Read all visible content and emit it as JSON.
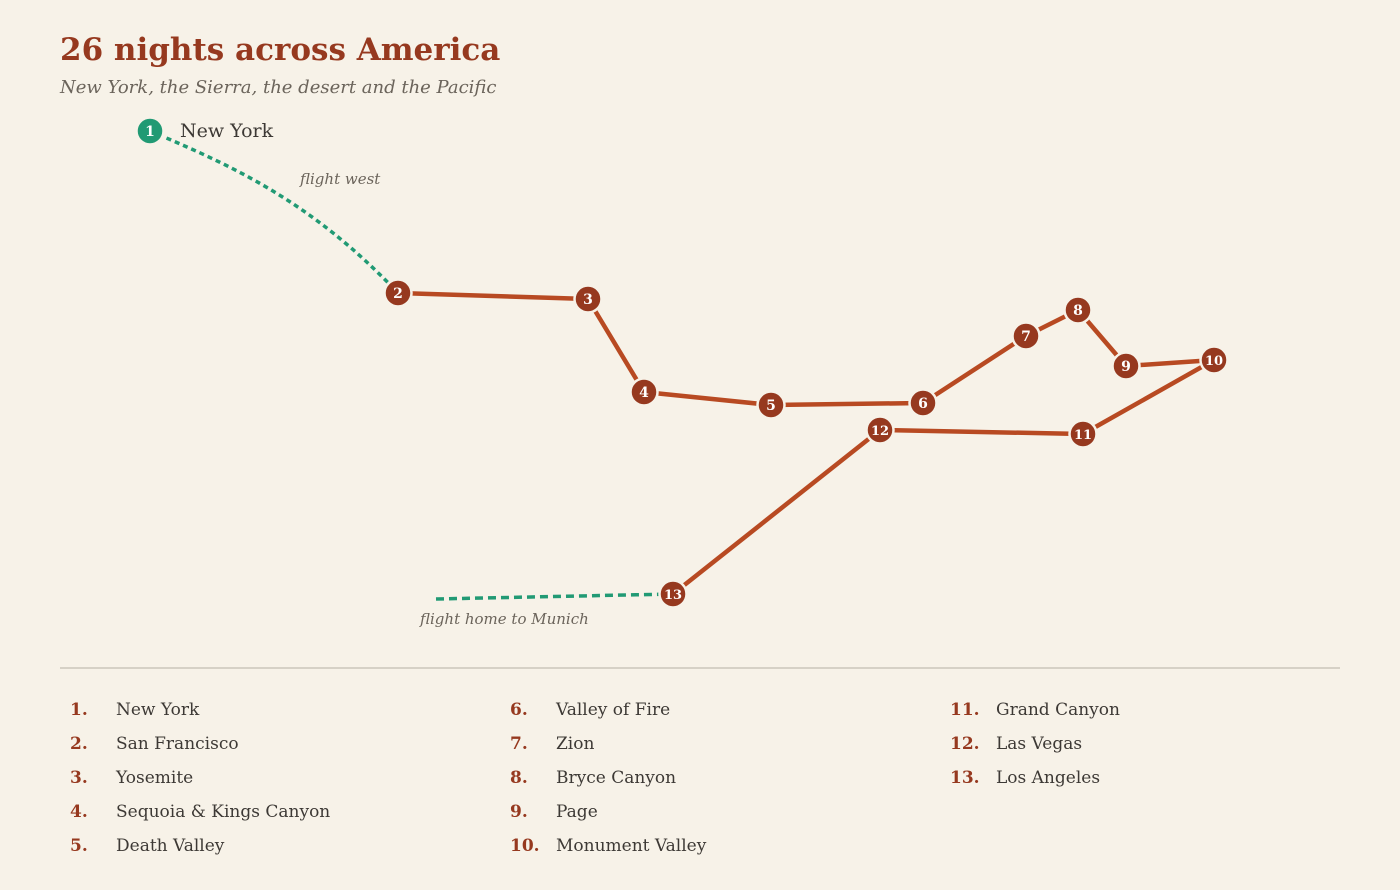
{
  "title": "26 nights across America",
  "subtitle": "New York, the Sierra, the desert and the Pacific",
  "colors": {
    "background": "#f7f2e8",
    "accent": "#96391f",
    "route_line": "#b84a22",
    "flight": "#219a74",
    "stop_fill": "#96391f",
    "divider": "#d6d1c6"
  },
  "start_label": "New York",
  "flight_labels": {
    "west": "flight west",
    "home": "flight home to Munich"
  },
  "stops": [
    {
      "num": "1",
      "name": "New York"
    },
    {
      "num": "2",
      "name": "San Francisco"
    },
    {
      "num": "3",
      "name": "Yosemite"
    },
    {
      "num": "4",
      "name": "Sequoia & Kings Canyon"
    },
    {
      "num": "5",
      "name": "Death Valley"
    },
    {
      "num": "6",
      "name": "Valley of Fire"
    },
    {
      "num": "7",
      "name": "Zion"
    },
    {
      "num": "8",
      "name": "Bryce Canyon"
    },
    {
      "num": "9",
      "name": "Page"
    },
    {
      "num": "10",
      "name": "Monument Valley"
    },
    {
      "num": "11",
      "name": "Grand Canyon"
    },
    {
      "num": "12",
      "name": "Las Vegas"
    },
    {
      "num": "13",
      "name": "Los Angeles"
    }
  ],
  "legend": {
    "col1": [
      {
        "num": "1.",
        "name": "New York"
      },
      {
        "num": "2.",
        "name": "San Francisco"
      },
      {
        "num": "3.",
        "name": "Yosemite"
      },
      {
        "num": "4.",
        "name": "Sequoia & Kings Canyon"
      },
      {
        "num": "5.",
        "name": "Death Valley"
      }
    ],
    "col2": [
      {
        "num": "6.",
        "name": "Valley of Fire"
      },
      {
        "num": "7.",
        "name": "Zion"
      },
      {
        "num": "8.",
        "name": "Bryce Canyon"
      },
      {
        "num": "9.",
        "name": "Page"
      },
      {
        "num": "10.",
        "name": "Monument Valley"
      }
    ],
    "col3": [
      {
        "num": "11.",
        "name": "Grand Canyon"
      },
      {
        "num": "12.",
        "name": "Las Vegas"
      },
      {
        "num": "13.",
        "name": "Los Angeles"
      }
    ]
  }
}
